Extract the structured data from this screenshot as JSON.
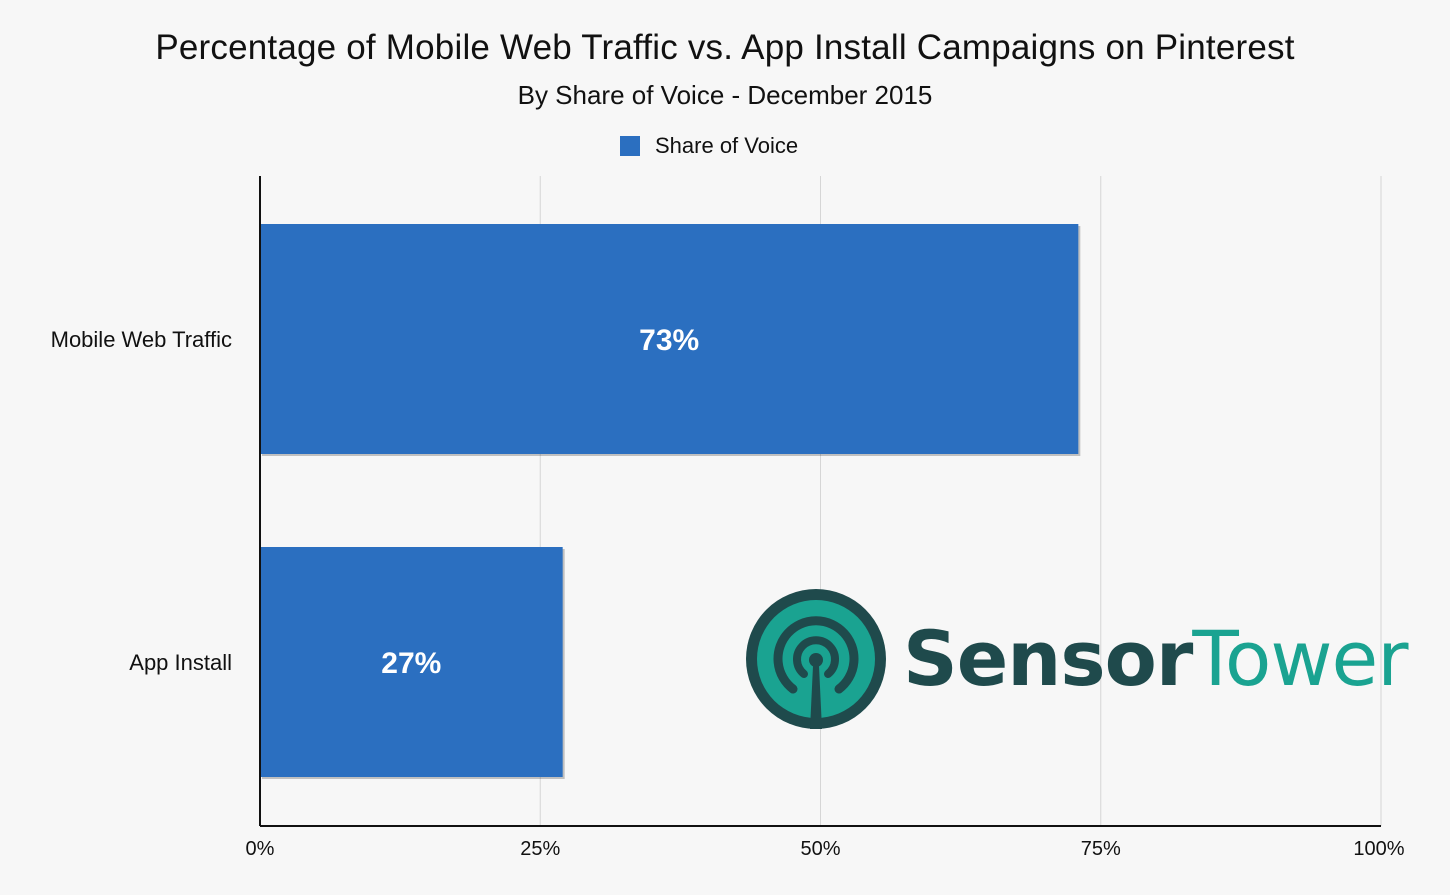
{
  "chart_data": {
    "type": "bar",
    "orientation": "horizontal",
    "title": "Percentage of Mobile Web Traffic vs. App Install Campaigns on Pinterest",
    "subtitle": "By Share of Voice - December 2015",
    "categories": [
      "Mobile Web Traffic",
      "App Install"
    ],
    "series": [
      {
        "name": "Share of Voice",
        "values": [
          73,
          27
        ],
        "data_labels": [
          "73%",
          "27%"
        ]
      }
    ],
    "xlim": [
      0,
      100
    ],
    "x_ticks": [
      0,
      25,
      50,
      75,
      100
    ],
    "x_tick_labels": [
      "0%",
      "25%",
      "50%",
      "75%",
      "100%"
    ],
    "xlabel": "",
    "ylabel": "",
    "grid": true,
    "legend_position": "top-center"
  },
  "colors": {
    "bar": "#2b6fc0",
    "grid": "#d6d6d6",
    "axis": "#111111",
    "text": "#111111",
    "data_label": "#ffffff",
    "logo_dark": "#1f4a4c",
    "logo_teal": "#1aa391"
  },
  "logo": {
    "icon": "sensor-tower-antenna-icon",
    "word1": "Sensor",
    "word2": "Tower"
  }
}
